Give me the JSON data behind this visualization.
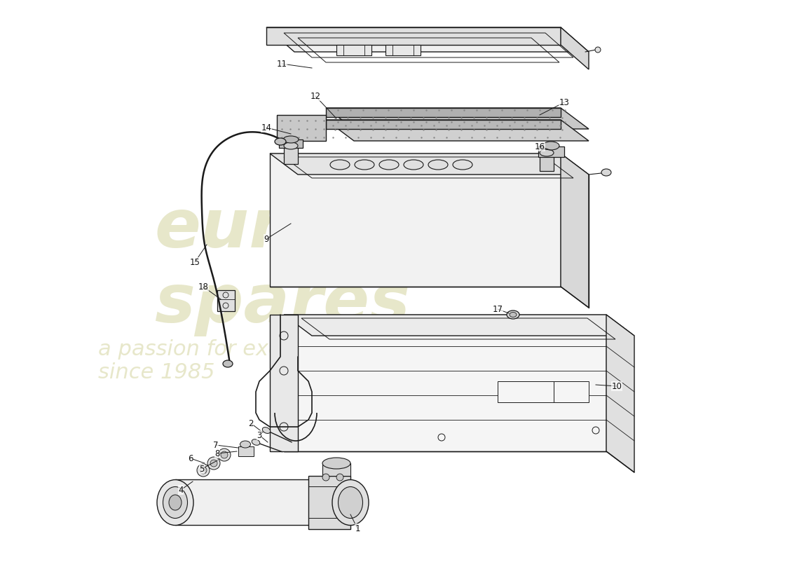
{
  "bg_color": "#ffffff",
  "line_color": "#1a1a1a",
  "label_color": "#111111",
  "lw": 1.0,
  "watermark_lines": [
    "euro",
    "spares"
  ],
  "watermark_sub": "a passion for excellence since 1985",
  "watermark_color": "#d4d4a0",
  "label_font_size": 8.5
}
